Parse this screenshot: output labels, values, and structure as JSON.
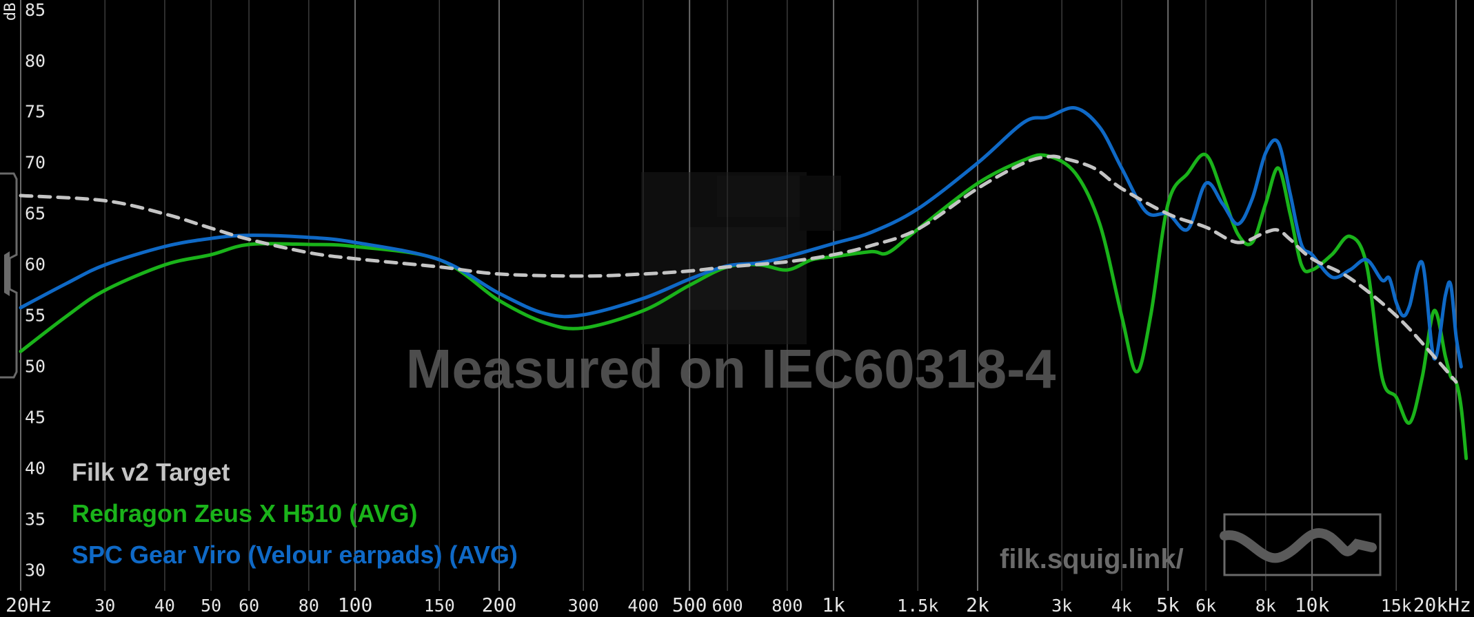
{
  "app": {
    "watermark": "Measured on IEC60318-4",
    "url": "filk.squig.link/",
    "y_unit": "dB"
  },
  "colors": {
    "background": "#000000",
    "target": "#c4c4c4",
    "redragon": "#1ab31a",
    "spc": "#0f69c6"
  },
  "chart_data": {
    "type": "line",
    "x_scale": "log",
    "xlim": [
      20,
      20000
    ],
    "ylim": [
      28,
      86
    ],
    "grid": true,
    "legend_position": "bottom-left",
    "x_ticks": [
      20,
      30,
      40,
      50,
      60,
      80,
      100,
      150,
      200,
      300,
      400,
      500,
      600,
      800,
      1000,
      1500,
      2000,
      3000,
      4000,
      5000,
      6000,
      8000,
      10000,
      15000,
      20000
    ],
    "x_tick_labels": [
      "20Hz",
      "30",
      "40",
      "50",
      "60",
      "80",
      "100",
      "150",
      "200",
      "300",
      "400",
      "500",
      "600",
      "800",
      "1k",
      "1.5k",
      "2k",
      "3k",
      "4k",
      "5k",
      "6k",
      "8k",
      "10k",
      "15k",
      "20kHz"
    ],
    "y_ticks": [
      30,
      35,
      40,
      45,
      50,
      55,
      60,
      65,
      70,
      75,
      80,
      85
    ],
    "y_tick_labels": [
      "30",
      "35",
      "40",
      "45",
      "50",
      "55",
      "60",
      "65",
      "70",
      "75",
      "80",
      "85"
    ],
    "series": [
      {
        "name": "Filk v2 Target",
        "key": "target",
        "dashed": true,
        "points": [
          [
            20,
            66.8
          ],
          [
            30,
            66.3
          ],
          [
            40,
            65
          ],
          [
            50,
            63.6
          ],
          [
            60,
            62.5
          ],
          [
            80,
            61.2
          ],
          [
            100,
            60.6
          ],
          [
            150,
            59.8
          ],
          [
            200,
            59.1
          ],
          [
            300,
            58.9
          ],
          [
            400,
            59.1
          ],
          [
            500,
            59.4
          ],
          [
            600,
            59.8
          ],
          [
            800,
            60.3
          ],
          [
            1000,
            61
          ],
          [
            1200,
            61.9
          ],
          [
            1500,
            63.5
          ],
          [
            2000,
            67.5
          ],
          [
            2500,
            70
          ],
          [
            2800,
            70.6
          ],
          [
            3000,
            70.5
          ],
          [
            3500,
            69.5
          ],
          [
            4000,
            67.5
          ],
          [
            5000,
            65
          ],
          [
            6000,
            63.7
          ],
          [
            7000,
            62.2
          ],
          [
            8000,
            63.2
          ],
          [
            8500,
            63.4
          ],
          [
            9000,
            62.5
          ],
          [
            10000,
            60.6
          ],
          [
            12000,
            58.7
          ],
          [
            15000,
            55
          ],
          [
            18000,
            51
          ],
          [
            20000,
            48.5
          ]
        ]
      },
      {
        "name": "Redragon Zeus X H510 (AVG)",
        "key": "redragon",
        "dashed": false,
        "points": [
          [
            20,
            51.5
          ],
          [
            25,
            55
          ],
          [
            30,
            57.5
          ],
          [
            40,
            60
          ],
          [
            50,
            61
          ],
          [
            60,
            62
          ],
          [
            80,
            62
          ],
          [
            100,
            61.8
          ],
          [
            150,
            60.5
          ],
          [
            200,
            56.5
          ],
          [
            250,
            54.3
          ],
          [
            300,
            53.8
          ],
          [
            400,
            55.5
          ],
          [
            500,
            58
          ],
          [
            600,
            59.8
          ],
          [
            700,
            60
          ],
          [
            800,
            59.5
          ],
          [
            900,
            60.5
          ],
          [
            1000,
            60.8
          ],
          [
            1200,
            61.3
          ],
          [
            1300,
            61.2
          ],
          [
            1500,
            63.5
          ],
          [
            2000,
            68
          ],
          [
            2500,
            70.3
          ],
          [
            2800,
            70.7
          ],
          [
            3200,
            69
          ],
          [
            3600,
            64
          ],
          [
            4000,
            55
          ],
          [
            4300,
            49.5
          ],
          [
            4600,
            55
          ],
          [
            5000,
            66
          ],
          [
            5500,
            69
          ],
          [
            6000,
            70.8
          ],
          [
            6500,
            67
          ],
          [
            7000,
            63
          ],
          [
            7500,
            62.2
          ],
          [
            8000,
            66
          ],
          [
            8500,
            69.5
          ],
          [
            9000,
            65
          ],
          [
            9500,
            60
          ],
          [
            10000,
            59.5
          ],
          [
            11000,
            61
          ],
          [
            12000,
            62.8
          ],
          [
            13000,
            60
          ],
          [
            14000,
            49
          ],
          [
            15000,
            47
          ],
          [
            16000,
            44.5
          ],
          [
            17000,
            49
          ],
          [
            18000,
            55.5
          ],
          [
            19000,
            51
          ],
          [
            19500,
            49
          ],
          [
            20000,
            48.5
          ],
          [
            20500,
            46
          ],
          [
            21000,
            41
          ]
        ]
      },
      {
        "name": "SPC Gear Viro (Velour earpads) (AVG)",
        "key": "spc",
        "dashed": false,
        "points": [
          [
            20,
            55.8
          ],
          [
            25,
            58.2
          ],
          [
            30,
            60
          ],
          [
            40,
            61.8
          ],
          [
            50,
            62.6
          ],
          [
            60,
            62.9
          ],
          [
            80,
            62.7
          ],
          [
            100,
            62.2
          ],
          [
            150,
            60.5
          ],
          [
            200,
            57.2
          ],
          [
            250,
            55.2
          ],
          [
            300,
            55.1
          ],
          [
            400,
            56.7
          ],
          [
            500,
            58.6
          ],
          [
            600,
            59.9
          ],
          [
            700,
            60.2
          ],
          [
            800,
            60.8
          ],
          [
            1000,
            62.1
          ],
          [
            1200,
            63.2
          ],
          [
            1500,
            65.5
          ],
          [
            2000,
            70
          ],
          [
            2500,
            74
          ],
          [
            2800,
            74.5
          ],
          [
            3200,
            75.4
          ],
          [
            3600,
            73.5
          ],
          [
            4000,
            69.5
          ],
          [
            4500,
            65.2
          ],
          [
            5000,
            65
          ],
          [
            5500,
            63.5
          ],
          [
            6000,
            68
          ],
          [
            6500,
            66
          ],
          [
            7000,
            64
          ],
          [
            7500,
            66.5
          ],
          [
            8000,
            71
          ],
          [
            8500,
            72
          ],
          [
            9000,
            67
          ],
          [
            9500,
            62
          ],
          [
            10000,
            61
          ],
          [
            11000,
            58.8
          ],
          [
            12000,
            59.5
          ],
          [
            13000,
            60.5
          ],
          [
            14000,
            58.5
          ],
          [
            14500,
            58.7
          ],
          [
            15000,
            56.3
          ],
          [
            15500,
            55
          ],
          [
            16000,
            56
          ],
          [
            17000,
            60.2
          ],
          [
            18000,
            50.8
          ],
          [
            19000,
            57
          ],
          [
            19500,
            58
          ],
          [
            20000,
            53
          ],
          [
            20500,
            50
          ]
        ]
      }
    ]
  }
}
